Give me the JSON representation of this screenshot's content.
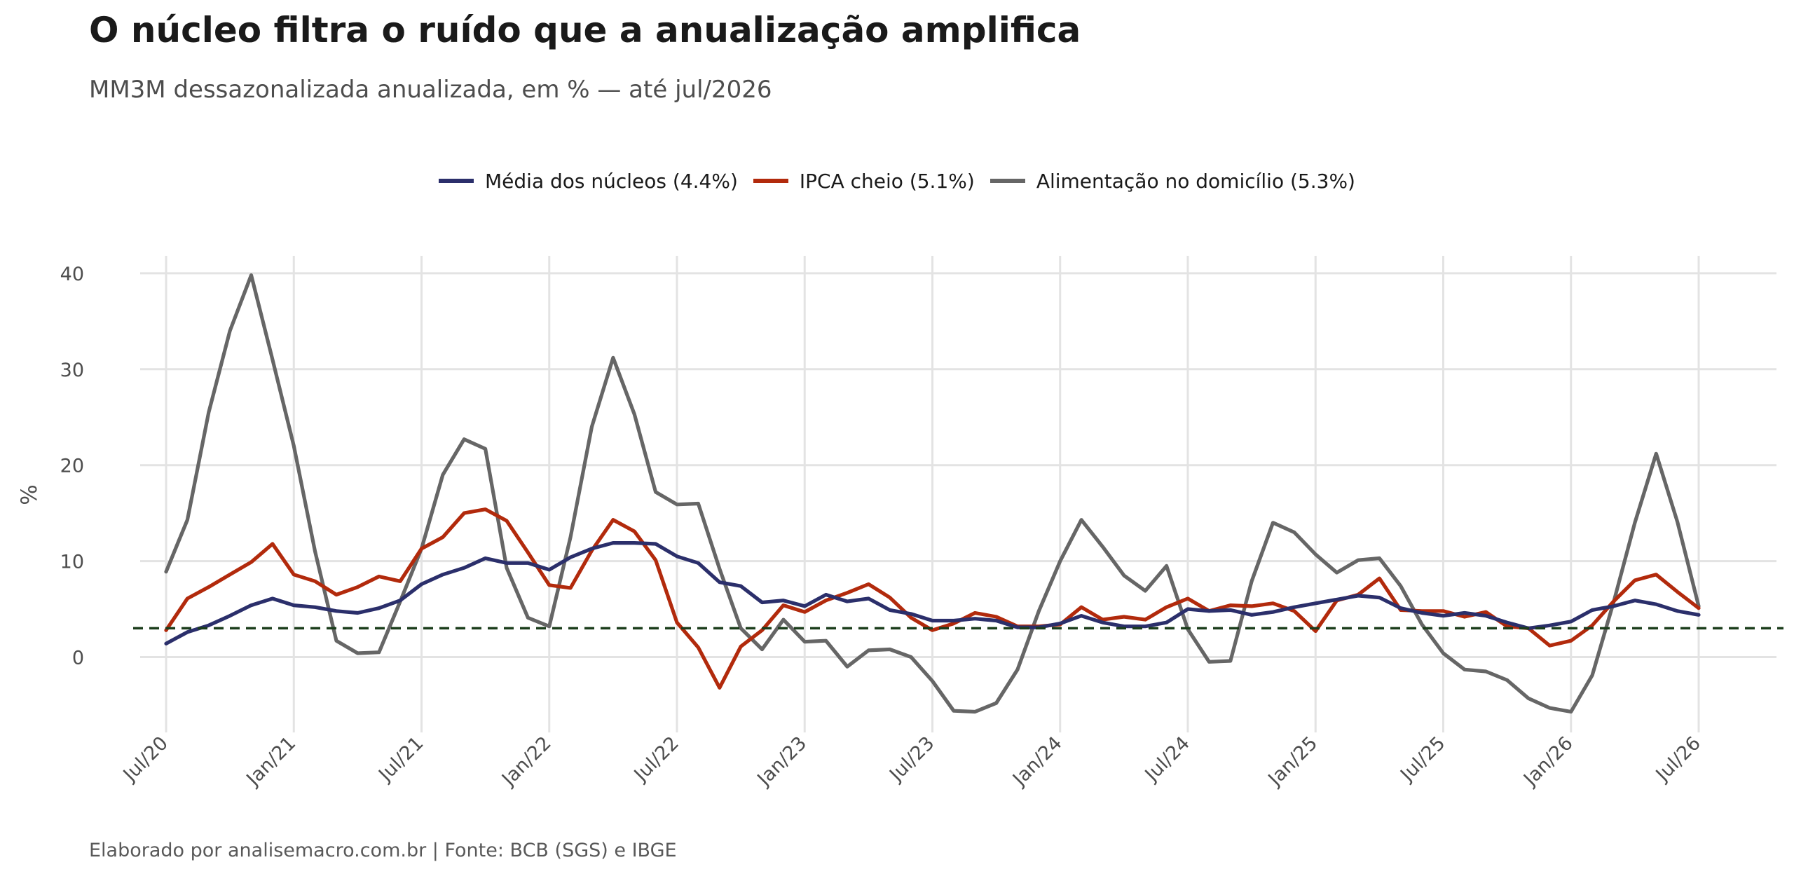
{
  "title": "O núcleo filtra o ruído que a anualização amplifica",
  "subtitle": "MM3M dessazonalizada anualizada, em % — até jul/2026",
  "caption": "Elaborado por analisemacro.com.br | Fonte: BCB (SGS) e IBGE",
  "chart_data": {
    "type": "line",
    "ylabel": "%",
    "xlabel": "",
    "ylim": [
      -7.5,
      42
    ],
    "y_ticks": [
      0,
      10,
      20,
      30,
      40
    ],
    "grid": true,
    "legend_position": "top",
    "x_ticks": [
      "Jul/20",
      "Jan/21",
      "Jul/21",
      "Jan/22",
      "Jul/22",
      "Jan/23",
      "Jul/23",
      "Jan/24",
      "Jul/24",
      "Jan/25",
      "Jul/25",
      "Jan/26",
      "Jul/26"
    ],
    "x": [
      "2020-07",
      "2020-08",
      "2020-09",
      "2020-10",
      "2020-11",
      "2020-12",
      "2021-01",
      "2021-02",
      "2021-03",
      "2021-04",
      "2021-05",
      "2021-06",
      "2021-07",
      "2021-08",
      "2021-09",
      "2021-10",
      "2021-11",
      "2021-12",
      "2022-01",
      "2022-02",
      "2022-03",
      "2022-04",
      "2022-05",
      "2022-06",
      "2022-07",
      "2022-08",
      "2022-09",
      "2022-10",
      "2022-11",
      "2022-12",
      "2023-01",
      "2023-02",
      "2023-03",
      "2023-04",
      "2023-05",
      "2023-06",
      "2023-07",
      "2023-08",
      "2023-09",
      "2023-10",
      "2023-11",
      "2023-12",
      "2024-01",
      "2024-02",
      "2024-03",
      "2024-04",
      "2024-05",
      "2024-06",
      "2024-07",
      "2024-08",
      "2024-09",
      "2024-10",
      "2024-11",
      "2024-12",
      "2025-01",
      "2025-02",
      "2025-03",
      "2025-04",
      "2025-05",
      "2025-06",
      "2025-07",
      "2025-08",
      "2025-09",
      "2025-10",
      "2025-11",
      "2025-12",
      "2026-01",
      "2026-02",
      "2026-03",
      "2026-04",
      "2026-05",
      "2026-06",
      "2026-07"
    ],
    "reference_line": 3.0,
    "series": [
      {
        "name": "Média dos núcleos (4.4%)",
        "color": "#2b2f6b",
        "values": [
          1.4,
          2.6,
          3.3,
          4.3,
          5.4,
          6.1,
          5.4,
          5.2,
          4.8,
          4.6,
          5.1,
          5.9,
          7.6,
          8.6,
          9.3,
          10.3,
          9.8,
          9.8,
          9.1,
          10.4,
          11.3,
          11.9,
          11.9,
          11.8,
          10.5,
          9.8,
          7.8,
          7.4,
          5.7,
          5.9,
          5.3,
          6.5,
          5.8,
          6.1,
          4.9,
          4.5,
          3.8,
          3.8,
          4.0,
          3.8,
          3.1,
          3.1,
          3.5,
          4.3,
          3.6,
          3.2,
          3.2,
          3.6,
          5.0,
          4.8,
          4.9,
          4.4,
          4.7,
          5.2,
          5.6,
          6.0,
          6.4,
          6.2,
          5.1,
          4.6,
          4.3,
          4.6,
          4.3,
          3.6,
          3.0,
          3.3,
          3.7,
          4.9,
          5.3,
          5.9,
          5.5,
          4.8,
          4.4
        ]
      },
      {
        "name": "IPCA cheio (5.1%)",
        "color": "#b22a0c",
        "values": [
          2.8,
          6.1,
          7.3,
          8.6,
          9.9,
          11.8,
          8.6,
          7.9,
          6.5,
          7.3,
          8.4,
          7.9,
          11.3,
          12.5,
          15.0,
          15.4,
          14.2,
          10.9,
          7.5,
          7.2,
          11.1,
          14.3,
          13.1,
          10.1,
          3.6,
          1.0,
          -3.2,
          1.1,
          2.8,
          5.4,
          4.7,
          5.9,
          6.7,
          7.6,
          6.2,
          4.1,
          2.8,
          3.5,
          4.6,
          4.2,
          3.2,
          3.2,
          3.4,
          5.2,
          3.9,
          4.2,
          3.9,
          5.2,
          6.1,
          4.8,
          5.4,
          5.3,
          5.6,
          4.8,
          2.7,
          5.9,
          6.5,
          8.2,
          4.9,
          4.8,
          4.8,
          4.2,
          4.7,
          3.2,
          3.0,
          1.2,
          1.7,
          3.3,
          5.8,
          8.0,
          8.6,
          6.8,
          5.1
        ]
      },
      {
        "name": "Alimentação no domicílio (5.3%)",
        "color": "#666666",
        "values": [
          8.9,
          14.3,
          25.5,
          34.0,
          39.8,
          31.0,
          22.0,
          11.0,
          1.7,
          0.4,
          0.5,
          5.8,
          11.3,
          19.0,
          22.7,
          21.7,
          9.3,
          4.1,
          3.2,
          12.5,
          24.0,
          31.2,
          25.3,
          17.2,
          15.9,
          16.0,
          9.2,
          3.0,
          0.8,
          3.9,
          1.6,
          1.7,
          -1.0,
          0.7,
          0.8,
          0.0,
          -2.5,
          -5.6,
          -5.7,
          -4.8,
          -1.3,
          4.8,
          10.0,
          14.3,
          11.5,
          8.5,
          6.9,
          9.5,
          2.9,
          -0.5,
          -0.4,
          7.9,
          14.0,
          13.0,
          10.7,
          8.8,
          10.1,
          10.3,
          7.4,
          3.4,
          0.4,
          -1.3,
          -1.5,
          -2.4,
          -4.3,
          -5.3,
          -5.7,
          -1.9,
          5.7,
          14.0,
          21.2,
          14.1,
          5.3
        ]
      }
    ]
  }
}
